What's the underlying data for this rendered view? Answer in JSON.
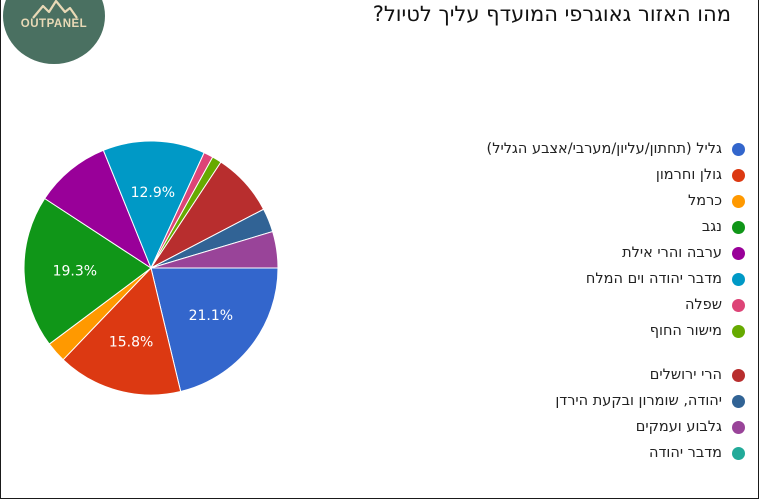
{
  "brand": {
    "logo_text": "OUTPANEL"
  },
  "chart_data": {
    "type": "pie",
    "title": "מהו האזור גאוגרפי המועדף עליך לטיול?",
    "legend_position": "right",
    "slices": [
      {
        "label": "גליל (תחתון/עליון/מערבי/אצבע הגליל)",
        "value": 21.1,
        "color": "#3366cc",
        "show_label": true
      },
      {
        "label": "גולן וחרמון",
        "value": 15.8,
        "color": "#dc3912",
        "show_label": true
      },
      {
        "label": "כרמל",
        "value": 2.6,
        "color": "#ff9900",
        "show_label": false
      },
      {
        "label": "נגב",
        "value": 19.3,
        "color": "#109618",
        "show_label": true
      },
      {
        "label": "ערבה והרי אילת",
        "value": 9.6,
        "color": "#990099",
        "show_label": false
      },
      {
        "label": "מדבר יהודה וים המלח",
        "value": 12.9,
        "color": "#0099c6",
        "show_label": true
      },
      {
        "label": "שפלה",
        "value": 1.2,
        "color": "#dd4477",
        "show_label": false
      },
      {
        "label": "מישור החוף",
        "value": 1.2,
        "color": "#66aa00",
        "show_label": false
      },
      {
        "label": "הרי ירושלים",
        "value": 8.0,
        "color": "#b82e2e",
        "show_label": false
      },
      {
        "label": "יהודה, שומרון ובקעת הירדן",
        "value": 3.0,
        "color": "#316395",
        "show_label": false
      },
      {
        "label": "גלבוע ועמקים",
        "value": 4.6,
        "color": "#994499",
        "show_label": false
      },
      {
        "label": "מדבר יהודה",
        "value": 0.0,
        "color": "#22aa99",
        "show_label": false
      }
    ]
  }
}
